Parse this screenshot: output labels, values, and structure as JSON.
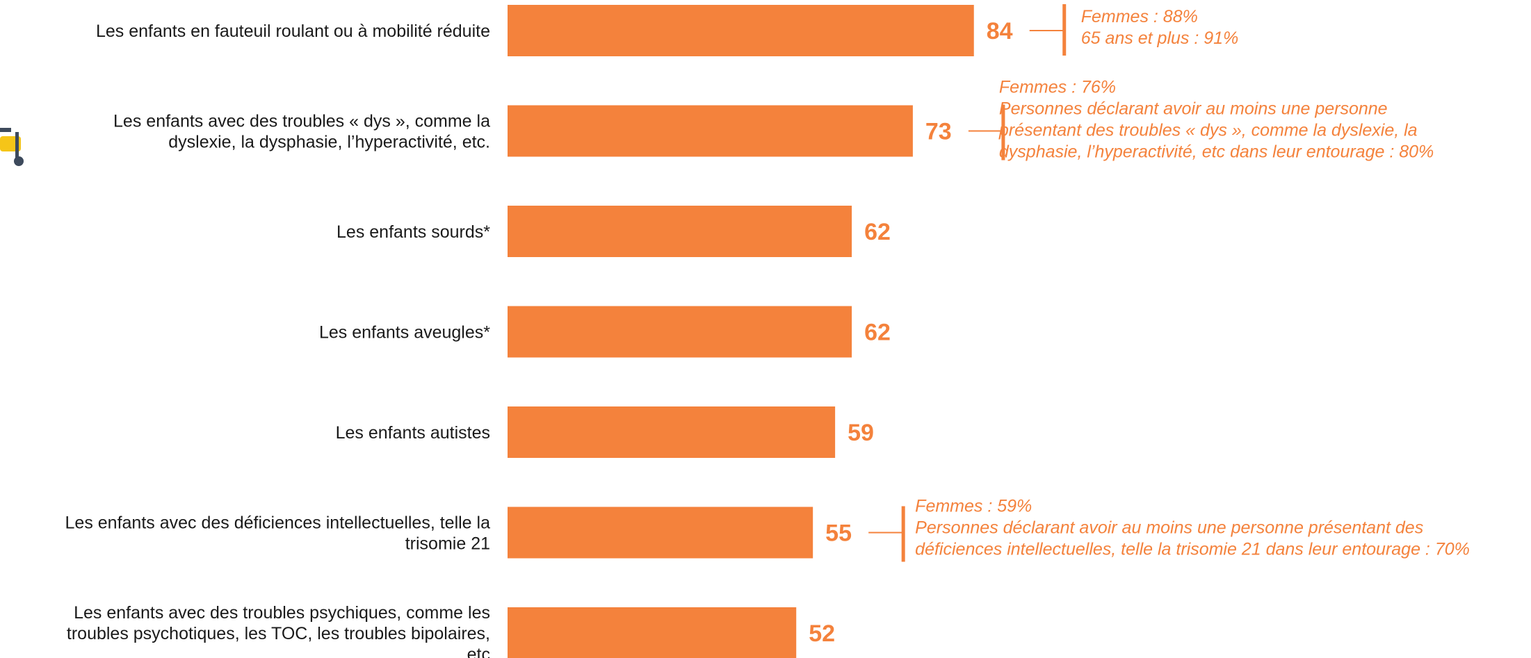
{
  "chart_data": {
    "type": "bar",
    "orientation": "horizontal",
    "categories": [
      "Les enfants en fauteuil roulant ou à mobilité réduite",
      "Les enfants avec des troubles « dys », comme la dyslexie, la dysphasie, l’hyperactivité, etc.",
      "Les enfants sourds*",
      "Les enfants aveugles*",
      "Les enfants autistes",
      "Les enfants avec des déficiences intellectuelles, telle la trisomie 21",
      "Les enfants avec des troubles psychiques, comme les troubles psychotiques, les TOC, les troubles bipolaires, etc"
    ],
    "category_lines": [
      [
        "Les enfants en fauteuil roulant ou à mobilité réduite"
      ],
      [
        "Les enfants avec des troubles « dys », comme la",
        "dyslexie, la dysphasie, l’hyperactivité, etc."
      ],
      [
        "Les enfants sourds*"
      ],
      [
        "Les enfants aveugles*"
      ],
      [
        "Les enfants autistes"
      ],
      [
        "Les enfants avec des déficiences intellectuelles, telle la",
        "trisomie 21"
      ],
      [
        "Les enfants avec des troubles psychiques, comme les",
        "troubles psychotiques, les TOC, les troubles bipolaires,",
        "etc"
      ]
    ],
    "values": [
      84,
      73,
      62,
      62,
      59,
      55,
      52
    ],
    "value_labels": [
      "84",
      "73",
      "62",
      "62",
      "59",
      "55",
      "52"
    ],
    "annotations": [
      {
        "category_index": 0,
        "lines": [
          "Femmes : 88%",
          "65 ans et plus : 91%"
        ]
      },
      {
        "category_index": 1,
        "lines": [
          "Femmes : 76%",
          "Personnes déclarant avoir au moins une personne",
          "présentant des troubles « dys », comme la dyslexie, la",
          "dysphasie, l’hyperactivité, etc dans leur entourage : 80%"
        ]
      },
      {
        "category_index": 5,
        "lines": [
          "Femmes : 59%",
          "Personnes déclarant avoir au moins une personne présentant des",
          "déficiences intellectuelles, telle la trisomie 21 dans leur entourage : 70%"
        ]
      }
    ],
    "xlim": [
      0,
      100
    ],
    "grid": false,
    "legend": "none",
    "colors": {
      "bar": "#f4823c",
      "value_text": "#f4823c",
      "label_text": "#1a1a1a"
    }
  }
}
